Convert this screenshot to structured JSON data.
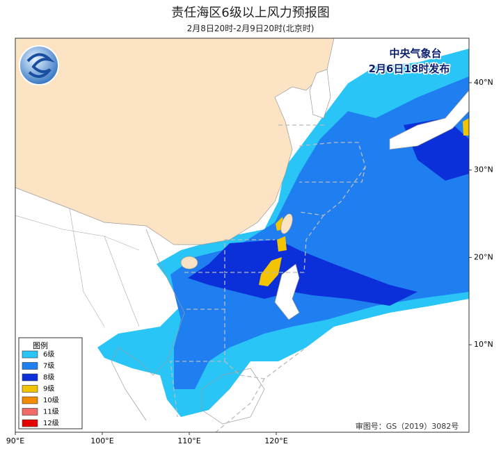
{
  "header": {
    "title": "责任海区6级以上风力预报图",
    "subtitle": "2月8日20时-2月9日20时(北京时)"
  },
  "issuer": {
    "agency": "中央气象台",
    "issued": "2月6日18时发布"
  },
  "legend": {
    "title": "图例",
    "items": [
      {
        "label": "6级",
        "color": "#29c5f6"
      },
      {
        "label": "7级",
        "color": "#1f7ff0"
      },
      {
        "label": "8级",
        "color": "#0b2fd9"
      },
      {
        "label": "9级",
        "color": "#f2c500"
      },
      {
        "label": "10级",
        "color": "#f08c00"
      },
      {
        "label": "11级",
        "color": "#f06a6a"
      },
      {
        "label": "12级",
        "color": "#e60000"
      }
    ]
  },
  "axes": {
    "lat_labels": [
      "40°N",
      "30°N",
      "20°N",
      "10°N"
    ],
    "lon_labels": [
      "90°E",
      "100°E",
      "110°E",
      "120°E"
    ]
  },
  "footer": {
    "approval": "审图号：GS（2019）3082号"
  }
}
